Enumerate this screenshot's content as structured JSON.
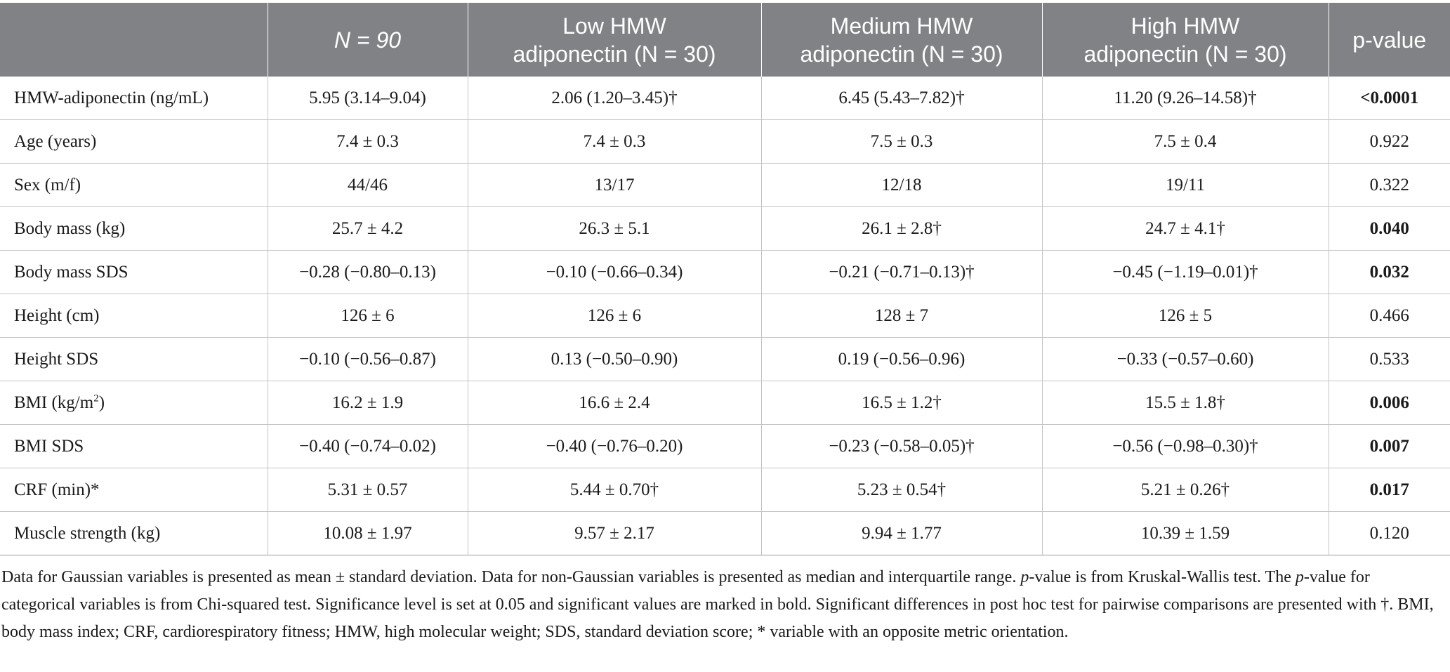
{
  "header": {
    "col0": "",
    "col1": "N = 90",
    "col2_line1": "Low HMW",
    "col2_line2": "adiponectin (N = 30)",
    "col3_line1": "Medium HMW",
    "col3_line2": "adiponectin (N = 30)",
    "col4_line1": "High HMW",
    "col4_line2": "adiponectin (N = 30)",
    "col5": "p-value"
  },
  "rows": [
    {
      "label": "HMW-adiponectin (ng/mL)",
      "all": "5.95 (3.14–9.04)",
      "low": "2.06 (1.20–3.45)†",
      "medium": "6.45 (5.43–7.82)†",
      "high": "11.20 (9.26–14.58)†",
      "p": "<0.0001",
      "significant": true
    },
    {
      "label": "Age (years)",
      "all": "7.4 ± 0.3",
      "low": "7.4 ± 0.3",
      "medium": "7.5 ± 0.3",
      "high": "7.5 ± 0.4",
      "p": "0.922",
      "significant": false
    },
    {
      "label": "Sex (m/f)",
      "all": "44/46",
      "low": "13/17",
      "medium": "12/18",
      "high": "19/11",
      "p": "0.322",
      "significant": false
    },
    {
      "label": "Body mass (kg)",
      "all": "25.7 ± 4.2",
      "low": "26.3 ± 5.1",
      "medium": "26.1 ± 2.8†",
      "high": "24.7 ± 4.1†",
      "p": "0.040",
      "significant": true
    },
    {
      "label": "Body mass SDS",
      "all": "−0.28 (−0.80–0.13)",
      "low": "−0.10 (−0.66–0.34)",
      "medium": "−0.21 (−0.71–0.13)†",
      "high": "−0.45 (−1.19–0.01)†",
      "p": "0.032",
      "significant": true
    },
    {
      "label": "Height (cm)",
      "all": "126 ± 6",
      "low": "126 ± 6",
      "medium": "128 ± 7",
      "high": "126 ± 5",
      "p": "0.466",
      "significant": false
    },
    {
      "label": "Height SDS",
      "all": "−0.10 (−0.56–0.87)",
      "low": "0.13 (−0.50–0.90)",
      "medium": "0.19 (−0.56–0.96)",
      "high": "−0.33 (−0.57–0.60)",
      "p": "0.533",
      "significant": false
    },
    {
      "label": "BMI (kg/m",
      "label_sup": "2",
      "label_tail": ")",
      "all": "16.2 ± 1.9",
      "low": "16.6 ± 2.4",
      "medium": "16.5 ± 1.2†",
      "high": "15.5 ± 1.8†",
      "p": "0.006",
      "significant": true
    },
    {
      "label": "BMI SDS",
      "all": "−0.40 (−0.74–0.02)",
      "low": "−0.40 (−0.76–0.20)",
      "medium": "−0.23 (−0.58–0.05)†",
      "high": "−0.56 (−0.98–0.30)†",
      "p": "0.007",
      "significant": true
    },
    {
      "label": "CRF (min)*",
      "all": "5.31 ± 0.57",
      "low": "5.44 ± 0.70†",
      "medium": "5.23 ± 0.54†",
      "high": "5.21 ± 0.26†",
      "p": "0.017",
      "significant": true
    },
    {
      "label": "Muscle strength (kg)",
      "all": "10.08 ± 1.97",
      "low": "9.57 ± 2.17",
      "medium": "9.94 ± 1.77",
      "high": "10.39 ± 1.59",
      "p": "0.120",
      "significant": false
    }
  ],
  "footnote": {
    "s1": "Data for Gaussian variables is presented as mean ± standard deviation. Data for non-Gaussian variables is presented as median and interquartile range. ",
    "p_italic_1": "p",
    "s2": "-value is from Kruskal-Wallis test. The ",
    "p_italic_2": "p",
    "s3": "-value for categorical variables is from Chi-squared test. Significance level is set at 0.05 and significant values are marked in bold. Significant differences in post hoc test for pairwise comparisons are presented with †. BMI, body mass index; CRF, cardiorespiratory fitness; HMW, high molecular weight; SDS, standard deviation score; * variable with an opposite metric orientation."
  }
}
